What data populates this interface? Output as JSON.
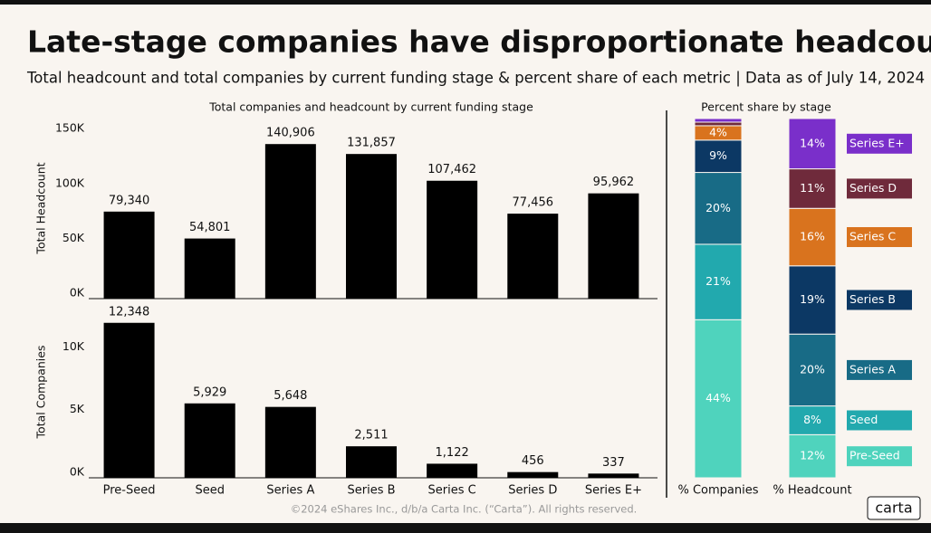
{
  "title": "Late-stage companies have disproportionate headcount",
  "subtitle": "Total headcount and total companies by current funding stage & percent share of each metric | Data as of July 14, 2024",
  "footer": "©2024 eShares Inc., d/b/a Carta Inc. (“Carta”). All rights reserved.",
  "logo": "carta",
  "chart_data": [
    {
      "type": "bar",
      "title": "Total companies and headcount by current funding stage",
      "y_label": "Total Headcount",
      "color": "#000000",
      "values": [
        79340,
        54801,
        140906,
        131857,
        107462,
        77456,
        95962
      ],
      "value_labels": [
        "79,340",
        "54,801",
        "140,906",
        "131,857",
        "107,462",
        "77,456",
        "95,962"
      ],
      "ylim": [
        0,
        165000
      ],
      "yticks": [
        {
          "value": 0,
          "label": "0K"
        },
        {
          "value": 50000,
          "label": "50K"
        },
        {
          "value": 100000,
          "label": "100K"
        },
        {
          "value": 150000,
          "label": "150K"
        }
      ]
    },
    {
      "type": "bar",
      "y_label": "Total Companies",
      "color": "#000000",
      "categories": [
        "Pre-Seed",
        "Seed",
        "Series A",
        "Series B",
        "Series C",
        "Series D",
        "Series E+"
      ],
      "values": [
        12348,
        5929,
        5648,
        2511,
        1122,
        456,
        337
      ],
      "value_labels": [
        "12,348",
        "5,929",
        "5,648",
        "2,511",
        "1,122",
        "456",
        "337"
      ],
      "ylim": [
        0,
        13700
      ],
      "yticks": [
        {
          "value": 0,
          "label": "0K"
        },
        {
          "value": 5000,
          "label": "5K"
        },
        {
          "value": 10000,
          "label": "10K"
        }
      ]
    },
    {
      "type": "stacked_bar",
      "title": "Percent share by stage",
      "categories": [
        "% Companies",
        "% Headcount"
      ],
      "ylim": [
        0,
        100
      ],
      "series": [
        {
          "name": "Pre-Seed",
          "color": "#4fd3bd",
          "values": [
            44,
            12
          ],
          "value_labels": [
            "44%",
            "12%"
          ]
        },
        {
          "name": "Seed",
          "color": "#22a9ae",
          "values": [
            21,
            8
          ],
          "value_labels": [
            "21%",
            "8%"
          ]
        },
        {
          "name": "Series A",
          "color": "#186b86",
          "values": [
            20,
            20
          ],
          "value_labels": [
            "20%",
            "20%"
          ]
        },
        {
          "name": "Series B",
          "color": "#0c3864",
          "values": [
            9,
            19
          ],
          "value_labels": [
            "9%",
            "19%"
          ]
        },
        {
          "name": "Series C",
          "color": "#d9731e",
          "values": [
            4,
            16
          ],
          "value_labels": [
            "4%",
            "16%"
          ]
        },
        {
          "name": "Series D",
          "color": "#6f2a3b",
          "values": [
            1,
            11
          ],
          "value_labels": [
            null,
            "11%"
          ]
        },
        {
          "name": "Series E+",
          "color": "#7a2fca",
          "values": [
            1,
            14
          ],
          "value_labels": [
            null,
            "14%"
          ]
        }
      ]
    }
  ]
}
